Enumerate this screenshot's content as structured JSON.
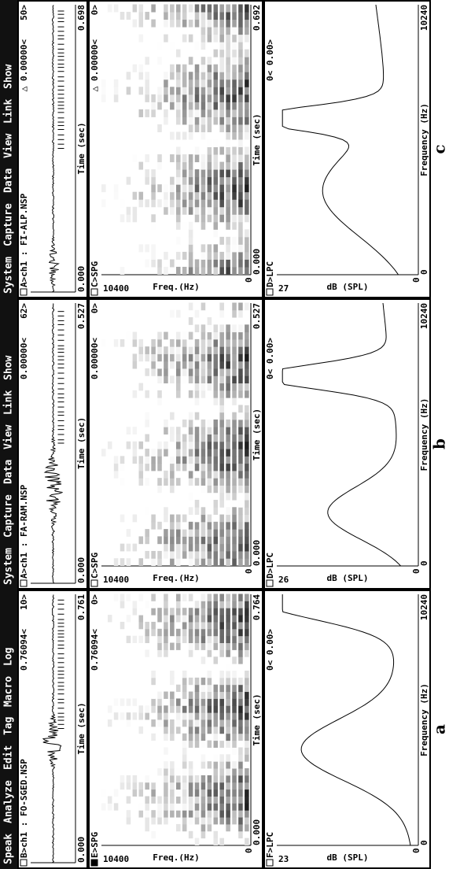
{
  "panels": [
    {
      "menu": [
        "Speak",
        "Analyze",
        "Edit",
        "Tag",
        "Macro",
        "Log"
      ],
      "label": "a",
      "wave": {
        "header": "B>ch1 : FO-SGED.NSP",
        "cursor": "0.76094<",
        "count": "10>",
        "x_start": "0.000",
        "x_label": "Time (sec)",
        "x_end": "0.761"
      },
      "spg": {
        "header": "E>SPG",
        "y_top": "10400",
        "y_label": "Freq.(Hz)",
        "y_bottom": "0",
        "cursor": "0.76094<",
        "count": "0>",
        "x_start": "0.000",
        "x_label": "Time (sec)",
        "x_end": "0.764"
      },
      "lpc": {
        "header": "F>LPC",
        "y_top": "23",
        "y_label": "dB (SPL)",
        "y_bottom": "0",
        "cursor": "0< 0.00>",
        "x_start": "0",
        "x_label": "Frequency (Hz)",
        "x_end": "10240"
      }
    },
    {
      "menu": [
        "System",
        "Capture",
        "Data",
        "View",
        "Link",
        "Show"
      ],
      "label": "b",
      "wave": {
        "header": "A>ch1 : FA-RAM.NSP",
        "cursor": "0.00000<",
        "count": "62>",
        "x_start": "0.000",
        "x_label": "Time (sec)",
        "x_end": "0.527"
      },
      "spg": {
        "header": "C>SPG",
        "y_top": "10400",
        "y_label": "Freq.(Hz)",
        "y_bottom": "0",
        "cursor": "0.00000<",
        "count": "0>",
        "x_start": "0.000",
        "x_label": "Time (sec)",
        "x_end": "0.527"
      },
      "lpc": {
        "header": "D>LPC",
        "y_top": "26",
        "y_label": "dB (SPL)",
        "y_bottom": "0",
        "cursor": "0< 0.00>",
        "x_start": "0",
        "x_label": "Frequency (Hz)",
        "x_end": "10240"
      }
    },
    {
      "menu": [
        "System",
        "Capture",
        "Data",
        "View",
        "Link",
        "Show"
      ],
      "label": "c",
      "wave": {
        "header": "A>ch1 : FI-ALP.NSP",
        "cursor": "△ 0.00000<",
        "count": "50>",
        "x_start": "0.000",
        "x_label": "Time (sec)",
        "x_end": "0.698"
      },
      "spg": {
        "header": "C>SPG",
        "y_top": "10400",
        "y_label": "Freq.(Hz)",
        "y_bottom": "0",
        "cursor": "△ 0.00000<",
        "count": "0>",
        "x_start": "0.000",
        "x_label": "Time (sec)",
        "x_end": "0.692"
      },
      "lpc": {
        "header": "D>LPC",
        "y_top": "27",
        "y_label": "dB (SPL)",
        "y_bottom": "0",
        "cursor": "0< 0.00>",
        "x_start": "0",
        "x_label": "Frequency (Hz)",
        "x_end": "10240"
      }
    }
  ]
}
